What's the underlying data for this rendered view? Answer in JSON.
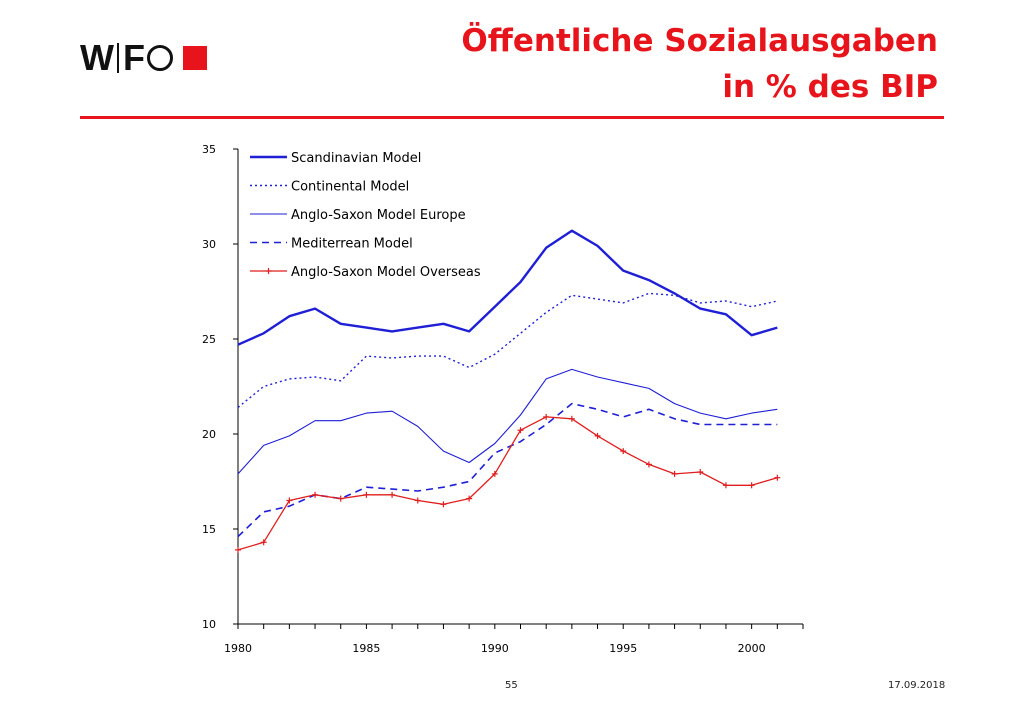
{
  "header": {
    "logo_text_1": "W",
    "logo_text_2": "F",
    "title_line1": "Öffentliche Sozialausgaben",
    "title_line2": "in % des BIP"
  },
  "footer": {
    "page_number": "55",
    "date": "17.09.2018"
  },
  "colors": {
    "accent": "#e8141b",
    "blue": "#1f1fd6",
    "red": "#e01e1e"
  },
  "chart_data": {
    "type": "line",
    "title": "",
    "xlabel": "",
    "ylabel": "",
    "xlim": [
      1980,
      2002
    ],
    "ylim": [
      10,
      35
    ],
    "x_ticks": [
      1980,
      1985,
      1990,
      1995,
      2000
    ],
    "y_ticks": [
      10,
      15,
      20,
      25,
      30,
      35
    ],
    "grid": false,
    "legend_position": "top-left",
    "x": [
      1980,
      1981,
      1982,
      1983,
      1984,
      1985,
      1986,
      1987,
      1988,
      1989,
      1990,
      1991,
      1992,
      1993,
      1994,
      1995,
      1996,
      1997,
      1998,
      1999,
      2000,
      2001
    ],
    "series": [
      {
        "name": "Scandinavian Model",
        "style": "thick-solid",
        "color": "#1f1fd6",
        "values": [
          24.7,
          25.3,
          26.2,
          26.6,
          25.8,
          25.6,
          25.4,
          25.6,
          25.8,
          25.4,
          26.7,
          28.0,
          29.8,
          30.7,
          29.9,
          28.6,
          28.1,
          27.4,
          26.6,
          26.3,
          25.2,
          25.6
        ]
      },
      {
        "name": "Continental Model",
        "style": "dotted",
        "color": "#1f1fd6",
        "values": [
          21.4,
          22.5,
          22.9,
          23.0,
          22.8,
          24.1,
          24.0,
          24.1,
          24.1,
          23.5,
          24.2,
          25.3,
          26.4,
          27.3,
          27.1,
          26.9,
          27.4,
          27.3,
          26.9,
          27.0,
          26.7,
          27.0
        ]
      },
      {
        "name": "Anglo-Saxon Model Europe",
        "style": "thin-solid",
        "color": "#1f1fd6",
        "values": [
          17.9,
          19.4,
          19.9,
          20.7,
          20.7,
          21.1,
          21.2,
          20.4,
          19.1,
          18.5,
          19.5,
          21.0,
          22.9,
          23.4,
          23.0,
          22.7,
          22.4,
          21.6,
          21.1,
          20.8,
          21.1,
          21.3
        ]
      },
      {
        "name": "Mediterrean Model",
        "style": "dashed",
        "color": "#1f1fd6",
        "values": [
          14.6,
          15.9,
          16.2,
          16.8,
          16.6,
          17.2,
          17.1,
          17.0,
          17.2,
          17.5,
          19.0,
          19.6,
          20.5,
          21.6,
          21.3,
          20.9,
          21.3,
          20.8,
          20.5,
          20.5,
          20.5,
          20.5
        ]
      },
      {
        "name": "Anglo-Saxon Model Overseas",
        "style": "solid-plus-markers",
        "color": "#e01e1e",
        "values": [
          13.9,
          14.3,
          16.5,
          16.8,
          16.6,
          16.8,
          16.8,
          16.5,
          16.3,
          16.6,
          17.9,
          20.2,
          20.9,
          20.8,
          19.9,
          19.1,
          18.4,
          17.9,
          18.0,
          17.3,
          17.3,
          17.7
        ]
      }
    ]
  }
}
